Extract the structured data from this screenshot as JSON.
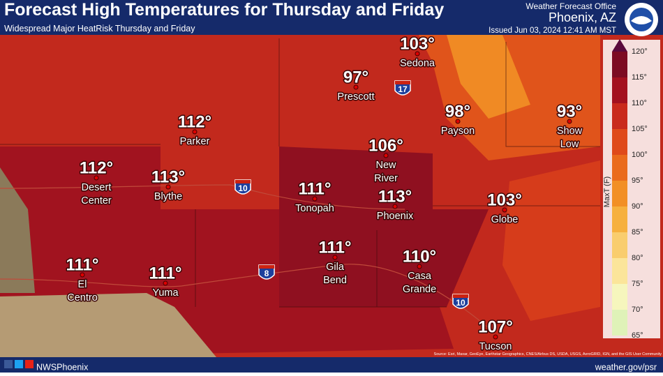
{
  "header": {
    "title": "Forecast High Temperatures for Thursday and Friday",
    "subtitle": "Widespread Major HeatRisk Thursday and Friday",
    "office": "Weather Forecast Office",
    "location": "Phoenix, AZ",
    "issued": "Issued Jun 03, 2024 12:41 AM MST"
  },
  "cities": [
    {
      "temp": "103°",
      "name": [
        "Sedona"
      ]
    },
    {
      "temp": "97°",
      "name": [
        "Prescott"
      ]
    },
    {
      "temp": "98°",
      "name": [
        "Payson"
      ]
    },
    {
      "temp": "93°",
      "name": [
        "Show",
        "Low"
      ]
    },
    {
      "temp": "112°",
      "name": [
        "Parker"
      ]
    },
    {
      "temp": "106°",
      "name": [
        "New",
        "River"
      ]
    },
    {
      "temp": "112°",
      "name": [
        "Desert",
        "Center"
      ]
    },
    {
      "temp": "113°",
      "name": [
        "Blythe"
      ]
    },
    {
      "temp": "111°",
      "name": [
        "Tonopah"
      ]
    },
    {
      "temp": "113°",
      "name": [
        "Phoenix"
      ]
    },
    {
      "temp": "103°",
      "name": [
        "Globe"
      ]
    },
    {
      "temp": "111°",
      "name": [
        "Gila",
        "Bend"
      ]
    },
    {
      "temp": "110°",
      "name": [
        "Casa",
        "Grande"
      ]
    },
    {
      "temp": "111°",
      "name": [
        "El",
        "Centro"
      ]
    },
    {
      "temp": "111°",
      "name": [
        "Yuma"
      ]
    },
    {
      "temp": "107°",
      "name": [
        "Tucson"
      ]
    }
  ],
  "interstates": [
    "17",
    "10",
    "8",
    "10"
  ],
  "legend": {
    "title": "MaxT (F)",
    "ticks": [
      "120°",
      "115°",
      "110°",
      "105°",
      "100°",
      "95°",
      "90°",
      "85°",
      "80°",
      "75°",
      "70°",
      "65°"
    ],
    "colors": [
      "#5a0a3c",
      "#7c0b22",
      "#a3111f",
      "#c92a1c",
      "#df4a1a",
      "#ea6b1c",
      "#f28f25",
      "#f6b03e",
      "#f9cd6e",
      "#fbe59a",
      "#f6f6bd",
      "#dff2b8"
    ]
  },
  "footer": {
    "handle": "NWSPhoenix",
    "url": "weather.gov/psr",
    "source": "Source: Esri, Maxar, GeoEye, Earthstar Geographics, CNES/Airbus DS, USDA, USGS, AeroGRID, IGN, and the GIS User Community"
  }
}
